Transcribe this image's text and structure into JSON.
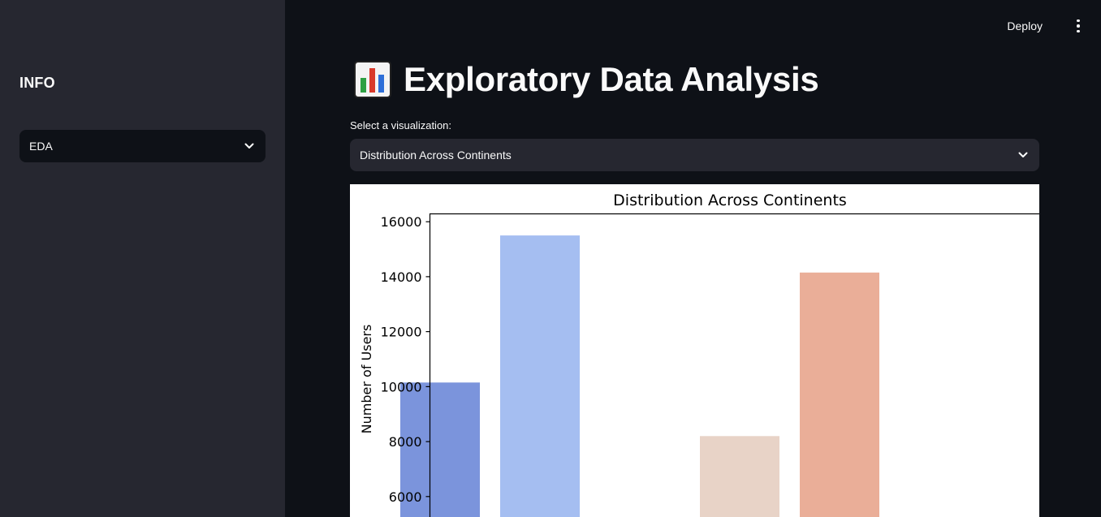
{
  "sidebar": {
    "title": "INFO",
    "select_value": "EDA"
  },
  "header": {
    "deploy_label": "Deploy",
    "menu_icon": "kebab-menu-icon"
  },
  "main": {
    "title": "Exploratory Data Analysis",
    "title_icon": "bar-chart-icon",
    "select_label": "Select a visualization:",
    "select_value": "Distribution Across Continents"
  },
  "chart_data": {
    "type": "bar",
    "title": "Distribution Across Continents",
    "xlabel": "",
    "ylabel": "Number of Users",
    "values": [
      10150,
      15500,
      null,
      8200,
      14150
    ],
    "colors": [
      "#7b94dc",
      "#a5bef1",
      "#ffffff",
      "#e8d3c7",
      "#eaae98"
    ],
    "yticks": [
      6000,
      8000,
      10000,
      12000,
      14000,
      16000
    ],
    "ylim_visible": [
      5300,
      16300
    ],
    "grid": false
  }
}
